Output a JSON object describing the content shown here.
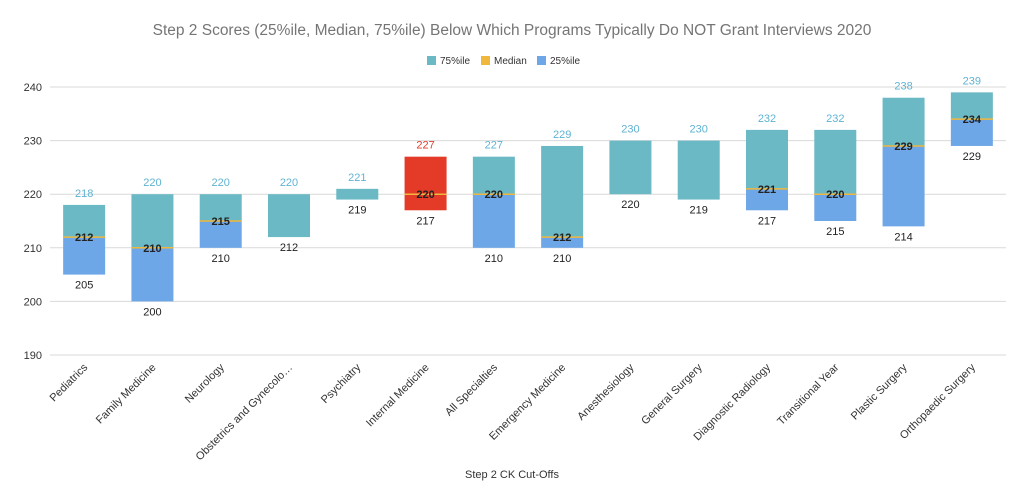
{
  "chart_data": {
    "type": "bar",
    "title": "Step 2 Scores (25%ile, Median, 75%ile) Below Which Programs Typically Do NOT Grant Interviews 2020",
    "xlabel": "Step 2 CK Cut-Offs",
    "ylabel": "",
    "ylim": [
      190,
      240
    ],
    "yticks": [
      190,
      200,
      210,
      220,
      230,
      240
    ],
    "grid": true,
    "legend": {
      "placement": "top-center",
      "entries": [
        {
          "name": "75%ile",
          "color": "#6bb9c4"
        },
        {
          "name": "Median",
          "color": "#f0b73d"
        },
        {
          "name": "25%ile",
          "color": "#6ea7e8"
        }
      ]
    },
    "colors": {
      "p75": "#6bb9c4",
      "median": "#f0b73d",
      "p25": "#6ea7e8",
      "highlight": "#e33b27",
      "p75_label": "#5fb3d3",
      "grid": "#d9d9d9"
    },
    "highlight_category": "Internal Medicine",
    "categories": [
      "Pediatrics",
      "Family Medicine",
      "Neurology",
      "Obstetrics and Gynecolo…",
      "Psychiatry",
      "Internal Medicine",
      "All Specialties",
      "Emergency Medicine",
      "Anesthesiology",
      "General Surgery",
      "Diagnostic Radiology",
      "Transitional Year",
      "Plastic Surgery",
      "Orthopaedic Surgery"
    ],
    "series": [
      {
        "name": "75%ile",
        "values": [
          218,
          220,
          220,
          220,
          221,
          227,
          227,
          229,
          230,
          230,
          232,
          232,
          238,
          239
        ]
      },
      {
        "name": "Median",
        "values": [
          212,
          210,
          215,
          null,
          null,
          220,
          220,
          212,
          null,
          null,
          221,
          220,
          229,
          234
        ]
      },
      {
        "name": "25%ile",
        "values": [
          205,
          200,
          210,
          212,
          219,
          217,
          210,
          210,
          220,
          219,
          217,
          215,
          214,
          229
        ]
      }
    ]
  }
}
